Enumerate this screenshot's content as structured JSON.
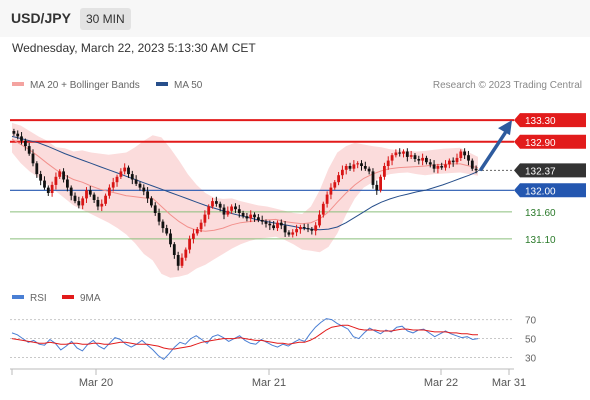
{
  "header": {
    "symbol": "USD/JPY",
    "timeframe": "30 MIN",
    "datetime": "Wednesday, March 22, 2023 5:13:30 AM CET"
  },
  "legend": {
    "items": [
      {
        "label": "MA 20 + Bollinger Bands",
        "color": "#f4a3a0"
      },
      {
        "label": "MA 50",
        "color": "#274f8b"
      }
    ],
    "credit": "Research © 2023 Trading Central"
  },
  "rsi_legend": {
    "items": [
      {
        "label": "RSI",
        "color": "#4a7fd4"
      },
      {
        "label": "9MA",
        "color": "#e21b1b"
      }
    ]
  },
  "colors": {
    "up": "#d81515",
    "down": "#111111",
    "resistance": "#e21b1b",
    "support": "#2457b0",
    "minor": "#8bbf7c",
    "minor_text": "#2a7a2a",
    "band": "#fbdcdc",
    "ma20": "#f2908c",
    "ma50": "#274f8b",
    "arrow": "#2e5b9e",
    "current": "#333333",
    "rsi": "#4a7fd4",
    "rsi_ma": "#e21b1b"
  },
  "chart_data": [
    {
      "type": "candlestick",
      "title": "USD/JPY",
      "ylim": [
        130.3,
        133.6
      ],
      "x_tick_labels": [
        "Mar 20",
        "Mar 21",
        "Mar 22",
        "Mar 31"
      ],
      "levels": [
        {
          "value": 133.3,
          "label": "133.30",
          "kind": "resistance"
        },
        {
          "value": 132.9,
          "label": "132.90",
          "kind": "resistance"
        },
        {
          "value": 132.37,
          "label": "132.37",
          "kind": "current"
        },
        {
          "value": 132.0,
          "label": "132.00",
          "kind": "support"
        },
        {
          "value": 131.6,
          "label": "131.60",
          "kind": "minor"
        },
        {
          "value": 131.1,
          "label": "131.10",
          "kind": "minor"
        }
      ],
      "projection": {
        "from": 132.37,
        "to": 133.3
      },
      "series": [
        {
          "name": "MA 20 + Bollinger Bands"
        },
        {
          "name": "MA 50"
        }
      ],
      "close": [
        133.05,
        133.0,
        132.92,
        132.82,
        132.68,
        132.5,
        132.3,
        132.18,
        132.05,
        131.95,
        132.1,
        132.25,
        132.35,
        132.2,
        132.05,
        131.9,
        131.8,
        131.72,
        131.85,
        132.0,
        131.92,
        131.82,
        131.7,
        131.75,
        131.9,
        132.05,
        132.15,
        132.25,
        132.35,
        132.42,
        132.3,
        132.2,
        132.12,
        132.05,
        131.98,
        131.85,
        131.72,
        131.58,
        131.42,
        131.3,
        131.2,
        131.0,
        130.8,
        130.6,
        130.75,
        130.9,
        131.1,
        131.2,
        131.28,
        131.4,
        131.55,
        131.7,
        131.8,
        131.75,
        131.68,
        131.55,
        131.62,
        131.7,
        131.65,
        131.58,
        131.52,
        131.48,
        131.55,
        131.5,
        131.45,
        131.42,
        131.38,
        131.35,
        131.3,
        131.4,
        131.35,
        131.22,
        131.18,
        131.22,
        131.28,
        131.32,
        131.3,
        131.28,
        131.25,
        131.35,
        131.55,
        131.75,
        131.92,
        132.05,
        132.15,
        132.28,
        132.38,
        132.45,
        132.4,
        132.48,
        132.5,
        132.45,
        132.4,
        132.35,
        132.1,
        132.0,
        132.25,
        132.45,
        132.55,
        132.65,
        132.7,
        132.68,
        132.72,
        132.62,
        132.65,
        132.58,
        132.55,
        132.6,
        132.52,
        132.48,
        132.4,
        132.45,
        132.42,
        132.48,
        132.55,
        132.52,
        132.6,
        132.72,
        132.65,
        132.55,
        132.4,
        132.37
      ],
      "bollinger": {
        "ma20": [
          132.95,
          132.85,
          132.75,
          132.63,
          132.5,
          132.38,
          132.28,
          132.2,
          132.15,
          132.08,
          132.02,
          131.98,
          131.94,
          131.9,
          131.88,
          131.86,
          131.85,
          131.7,
          131.55,
          131.42,
          131.32,
          131.26,
          131.24,
          131.26,
          131.3,
          131.36,
          131.4,
          131.42,
          131.44,
          131.45,
          131.46,
          131.42,
          131.4,
          131.38,
          131.4,
          131.47,
          131.6,
          131.78,
          131.95,
          132.1,
          132.22,
          132.3,
          132.36,
          132.4,
          132.42,
          132.43,
          132.44,
          132.45,
          132.47,
          132.48,
          132.49,
          132.49,
          132.45,
          132.42
        ],
        "upper": [
          133.25,
          133.2,
          133.1,
          133.0,
          132.92,
          132.8,
          132.78,
          132.72,
          132.74,
          132.7,
          132.68,
          132.66,
          132.68,
          132.7,
          132.8,
          132.92,
          133.02,
          132.98,
          132.78,
          132.55,
          132.3,
          132.1,
          131.95,
          131.86,
          131.84,
          131.85,
          131.8,
          131.76,
          131.72,
          131.7,
          131.66,
          131.62,
          131.58,
          131.56,
          131.7,
          132.0,
          132.4,
          132.7,
          132.82,
          132.88,
          132.85,
          132.82,
          132.8,
          132.76,
          132.74,
          132.73,
          132.72,
          132.73,
          132.75,
          132.77,
          132.78,
          132.79,
          132.7,
          132.62
        ],
        "lower": [
          132.7,
          132.5,
          132.35,
          132.24,
          132.1,
          131.98,
          131.85,
          131.72,
          131.64,
          131.56,
          131.48,
          131.4,
          131.3,
          131.18,
          131.02,
          130.82,
          130.7,
          130.45,
          130.38,
          130.4,
          130.44,
          130.55,
          130.62,
          130.72,
          130.82,
          130.92,
          131.0,
          131.06,
          131.1,
          131.12,
          131.14,
          131.08,
          131.0,
          130.9,
          130.88,
          130.85,
          130.95,
          131.2,
          131.55,
          131.85,
          132.05,
          132.15,
          132.25,
          132.3,
          132.32,
          132.33,
          132.3,
          132.28,
          132.3,
          132.31,
          132.32,
          132.33,
          132.3,
          132.27
        ]
      },
      "ma50": [
        133.0,
        132.96,
        132.92,
        132.88,
        132.82,
        132.75,
        132.68,
        132.62,
        132.56,
        132.5,
        132.44,
        132.38,
        132.32,
        132.26,
        132.2,
        132.14,
        132.08,
        132.02,
        131.96,
        131.9,
        131.84,
        131.78,
        131.72,
        131.67,
        131.62,
        131.57,
        131.53,
        131.49,
        131.45,
        131.42,
        131.39,
        131.36,
        131.33,
        131.3,
        131.28,
        131.27,
        131.28,
        131.32,
        131.4,
        131.5,
        131.6,
        131.7,
        131.78,
        131.84,
        131.89,
        131.93,
        131.97,
        132.0,
        132.05,
        132.1,
        132.16,
        132.22,
        132.28,
        132.35
      ]
    },
    {
      "type": "line",
      "title": "RSI",
      "ylim": [
        20,
        78
      ],
      "y_tick_labels": [
        "70",
        "50",
        "30"
      ],
      "y_ticks": [
        70,
        50,
        30
      ],
      "series": [
        {
          "name": "RSI",
          "values": [
            56,
            54,
            50,
            46,
            48,
            44,
            43,
            49,
            45,
            38,
            42,
            47,
            40,
            37,
            44,
            48,
            42,
            39,
            45,
            51,
            49,
            44,
            41,
            44,
            48,
            43,
            38,
            32,
            28,
            34,
            41,
            46,
            44,
            50,
            53,
            49,
            45,
            52,
            54,
            51,
            47,
            50,
            53,
            48,
            45,
            44,
            49,
            46,
            43,
            41,
            44,
            42,
            46,
            49,
            47,
            55,
            62,
            67,
            71,
            70,
            66,
            63,
            60,
            52,
            50,
            56,
            61,
            58,
            55,
            59,
            57,
            62,
            63,
            58,
            56,
            59,
            60,
            56,
            52,
            55,
            58,
            55,
            53,
            51,
            52,
            49,
            50
          ]
        },
        {
          "name": "9MA",
          "values": [
            50,
            49,
            48,
            47,
            46,
            45,
            45,
            46,
            45,
            44,
            44,
            45,
            45,
            44,
            44,
            45,
            45,
            44,
            44,
            45,
            46,
            46,
            45,
            44,
            44,
            44,
            43,
            42,
            40,
            39,
            39,
            40,
            41,
            42,
            44,
            46,
            47,
            48,
            49,
            50,
            50,
            50,
            51,
            50,
            49,
            48,
            48,
            47,
            46,
            45,
            45,
            44,
            45,
            46,
            46,
            48,
            51,
            55,
            59,
            62,
            63,
            64,
            64,
            62,
            60,
            59,
            59,
            59,
            58,
            58,
            58,
            59,
            60,
            60,
            59,
            59,
            59,
            58,
            57,
            57,
            57,
            56,
            56,
            55,
            55,
            54,
            54
          ]
        }
      ]
    }
  ]
}
